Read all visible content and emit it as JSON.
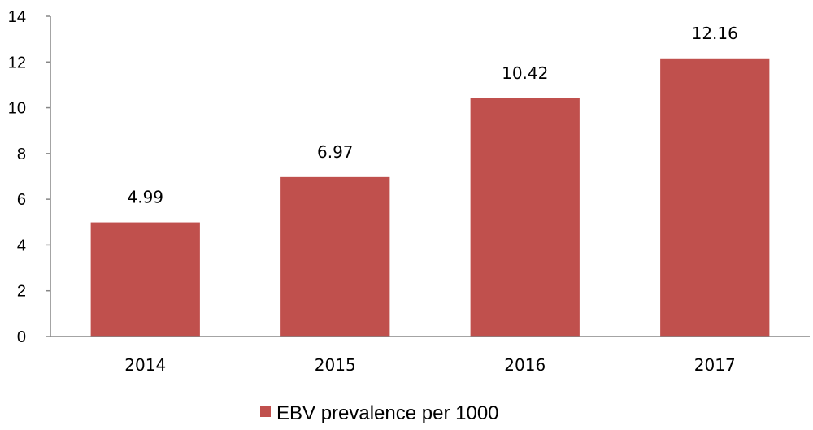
{
  "chart_data": {
    "type": "bar",
    "categories": [
      "2014",
      "2015",
      "2016",
      "2017"
    ],
    "series": [
      {
        "name": "EBV prevalence per 1000",
        "values": [
          4.99,
          6.97,
          10.42,
          12.16
        ],
        "color": "#C0504D"
      }
    ],
    "data_labels": [
      "4.99",
      "6.97",
      "10.42",
      "12.16"
    ],
    "y_ticks": [
      "0",
      "2",
      "4",
      "6",
      "8",
      "10",
      "12",
      "14"
    ],
    "ylim": [
      0,
      14
    ],
    "grid": false,
    "legend_position": "bottom"
  }
}
